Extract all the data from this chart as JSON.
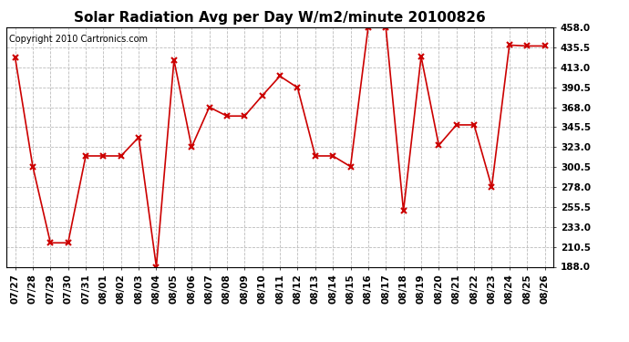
{
  "title": "Solar Radiation Avg per Day W/m2/minute 20100826",
  "copyright": "Copyright 2010 Cartronics.com",
  "labels": [
    "07/27",
    "07/28",
    "07/29",
    "07/30",
    "07/31",
    "08/01",
    "08/02",
    "08/03",
    "08/04",
    "08/05",
    "08/06",
    "08/07",
    "08/08",
    "08/09",
    "08/10",
    "08/11",
    "08/12",
    "08/13",
    "08/14",
    "08/15",
    "08/16",
    "08/17",
    "08/18",
    "08/19",
    "08/20",
    "08/21",
    "08/22",
    "08/23",
    "08/24",
    "08/25",
    "08/26"
  ],
  "values": [
    424.0,
    301.0,
    215.0,
    215.0,
    313.0,
    313.0,
    313.0,
    334.0,
    188.0,
    421.0,
    323.0,
    368.0,
    358.0,
    358.0,
    381.0,
    403.0,
    390.0,
    313.0,
    313.0,
    301.0,
    458.0,
    458.0,
    251.0,
    425.0,
    325.0,
    348.0,
    348.0,
    278.0,
    438.0,
    437.0,
    437.0
  ],
  "ylim_min": 188.0,
  "ylim_max": 458.0,
  "yticks": [
    188.0,
    210.5,
    233.0,
    255.5,
    278.0,
    300.5,
    323.0,
    345.5,
    368.0,
    390.5,
    413.0,
    435.5,
    458.0
  ],
  "line_color": "#cc0000",
  "marker": "x",
  "bg_color": "#ffffff",
  "grid_color": "#bbbbbb",
  "title_fontsize": 11,
  "copyright_fontsize": 7,
  "tick_fontsize": 7.5
}
